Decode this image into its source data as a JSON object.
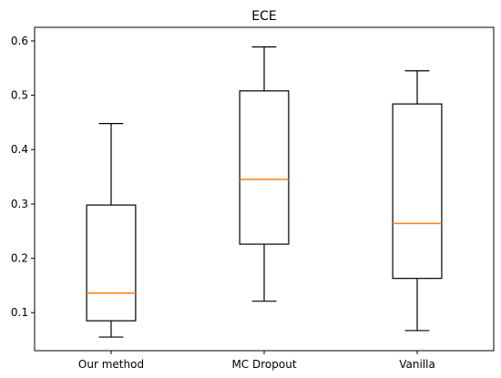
{
  "chart_data": {
    "type": "boxplot",
    "title": "ECE",
    "xlabel": "",
    "ylabel": "",
    "ylim": [
      0.03,
      0.625
    ],
    "yticks": [
      0.1,
      0.2,
      0.3,
      0.4,
      0.5,
      0.6
    ],
    "ytick_labels": [
      "0.1",
      "0.2",
      "0.3",
      "0.4",
      "0.5",
      "0.6"
    ],
    "categories": [
      "Our method",
      "MC Dropout",
      "Vanilla"
    ],
    "boxes": [
      {
        "whisker_low": 0.055,
        "q1": 0.085,
        "median": 0.136,
        "q3": 0.298,
        "whisker_high": 0.448
      },
      {
        "whisker_low": 0.121,
        "q1": 0.226,
        "median": 0.345,
        "q3": 0.508,
        "whisker_high": 0.589
      },
      {
        "whisker_low": 0.067,
        "q1": 0.163,
        "median": 0.264,
        "q3": 0.484,
        "whisker_high": 0.545
      }
    ],
    "colors": {
      "box": "#000000",
      "median": "#ff7f0e"
    },
    "grid": false
  }
}
